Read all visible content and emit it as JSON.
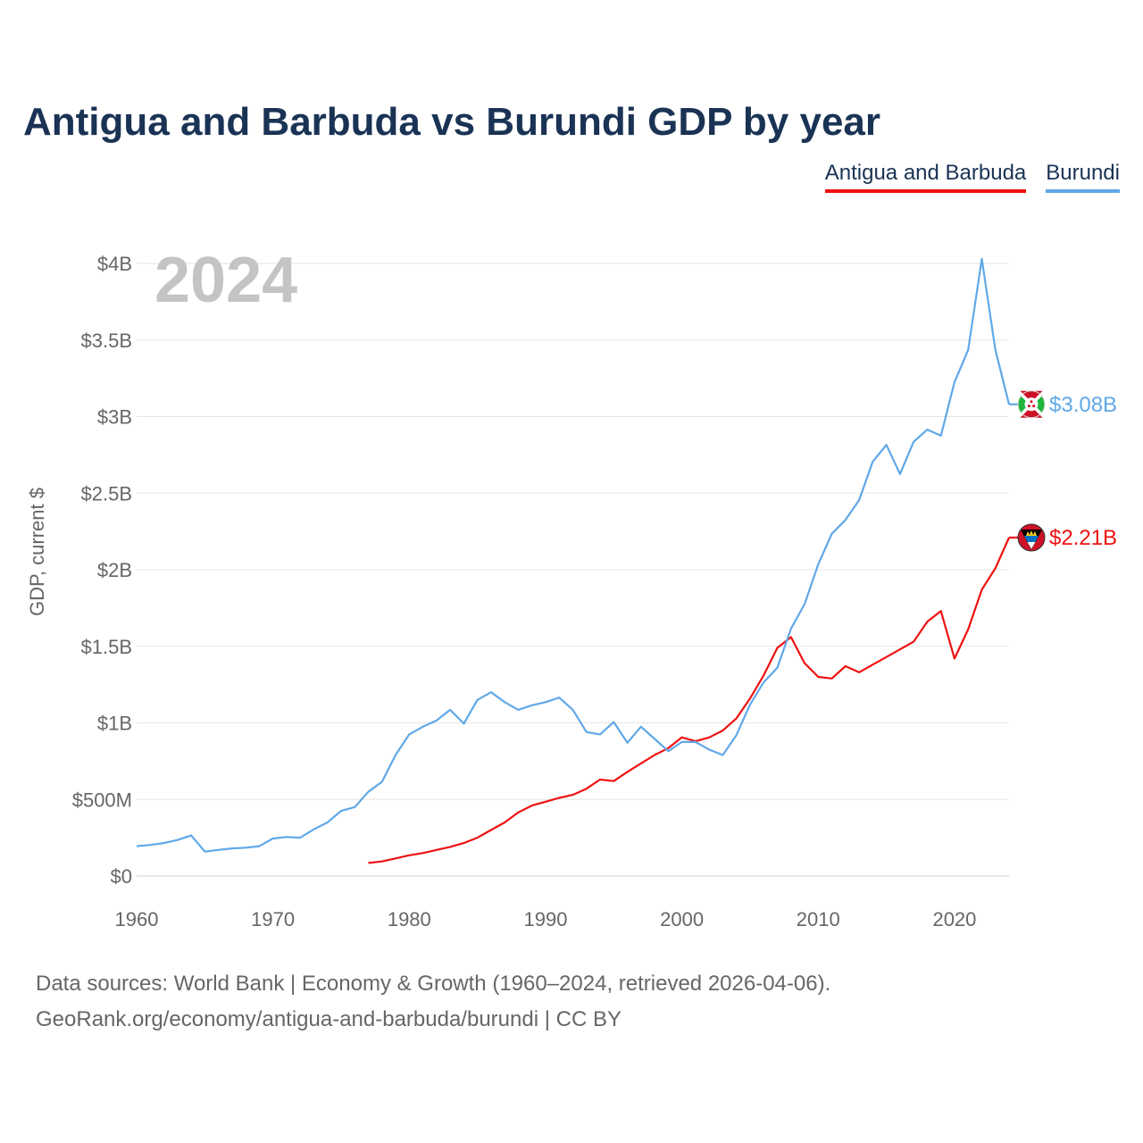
{
  "title": "Antigua and Barbuda vs Burundi GDP by year",
  "footer": {
    "sources": "Data sources: World Bank | Economy & Growth (1960–2024, retrieved 2026-04-06).",
    "link": "GeoRank.org/economy/antigua-and-barbuda/burundi | CC BY"
  },
  "chart_data": {
    "type": "line",
    "title": "Antigua and Barbuda vs Burundi GDP by year",
    "ylabel": "GDP, current $",
    "xlabel": "",
    "year_label": "2024",
    "xlim": [
      1960,
      2024
    ],
    "ylim": [
      0,
      4000
    ],
    "value_unit": "millions of current US$",
    "x_ticks": [
      1960,
      1970,
      1980,
      1990,
      2000,
      2010,
      2020
    ],
    "y_ticks": [
      {
        "value": 0,
        "label": "$0"
      },
      {
        "value": 500,
        "label": "$500M"
      },
      {
        "value": 1000,
        "label": "$1B"
      },
      {
        "value": 1500,
        "label": "$1.5B"
      },
      {
        "value": 2000,
        "label": "$2B"
      },
      {
        "value": 2500,
        "label": "$2.5B"
      },
      {
        "value": 3000,
        "label": "$3B"
      },
      {
        "value": 3500,
        "label": "$3.5B"
      },
      {
        "value": 4000,
        "label": "$4B"
      }
    ],
    "grid": true,
    "legend_position": "top-right",
    "series": [
      {
        "name": "Antigua and Barbuda",
        "color": "#ee1111",
        "end_label": "$2.21B",
        "flag_icon": "antigua-and-barbuda-flag-icon",
        "x": [
          1977,
          1978,
          1979,
          1980,
          1981,
          1982,
          1983,
          1984,
          1985,
          1986,
          1987,
          1988,
          1989,
          1990,
          1991,
          1992,
          1993,
          1994,
          1995,
          1996,
          1997,
          1998,
          1999,
          2000,
          2001,
          2002,
          2003,
          2004,
          2005,
          2006,
          2007,
          2008,
          2009,
          2010,
          2011,
          2012,
          2013,
          2014,
          2015,
          2016,
          2017,
          2018,
          2019,
          2020,
          2021,
          2022,
          2023,
          2024
        ],
        "values": [
          85,
          95,
          115,
          135,
          150,
          170,
          190,
          215,
          250,
          300,
          350,
          415,
          460,
          485,
          510,
          530,
          570,
          630,
          620,
          680,
          735,
          790,
          835,
          905,
          880,
          905,
          950,
          1030,
          1160,
          1310,
          1490,
          1560,
          1390,
          1300,
          1290,
          1370,
          1330,
          1380,
          1430,
          1480,
          1530,
          1660,
          1730,
          1420,
          1610,
          1870,
          2010,
          2210
        ]
      },
      {
        "name": "Burundi",
        "color": "#60a8e8",
        "end_label": "$3.08B",
        "flag_icon": "burundi-flag-icon",
        "x": [
          1960,
          1961,
          1962,
          1963,
          1964,
          1965,
          1966,
          1967,
          1968,
          1969,
          1970,
          1971,
          1972,
          1973,
          1974,
          1975,
          1976,
          1977,
          1978,
          1979,
          1980,
          1981,
          1982,
          1983,
          1984,
          1985,
          1986,
          1987,
          1988,
          1989,
          1990,
          1991,
          1992,
          1993,
          1994,
          1995,
          1996,
          1997,
          1998,
          1999,
          2000,
          2001,
          2002,
          2003,
          2004,
          2005,
          2006,
          2007,
          2008,
          2009,
          2010,
          2011,
          2012,
          2013,
          2014,
          2015,
          2016,
          2017,
          2018,
          2019,
          2020,
          2021,
          2022,
          2023,
          2024
        ],
        "values": [
          195,
          203,
          215,
          235,
          265,
          160,
          170,
          180,
          185,
          195,
          245,
          255,
          250,
          305,
          350,
          425,
          450,
          550,
          615,
          790,
          925,
          975,
          1015,
          1085,
          995,
          1150,
          1200,
          1135,
          1085,
          1115,
          1135,
          1165,
          1085,
          940,
          925,
          1005,
          870,
          975,
          895,
          815,
          875,
          875,
          825,
          790,
          920,
          1120,
          1265,
          1360,
          1615,
          1775,
          2035,
          2235,
          2325,
          2455,
          2705,
          2815,
          2625,
          2835,
          2915,
          2875,
          3225,
          3435,
          4030,
          3435,
          3080
        ]
      }
    ]
  }
}
